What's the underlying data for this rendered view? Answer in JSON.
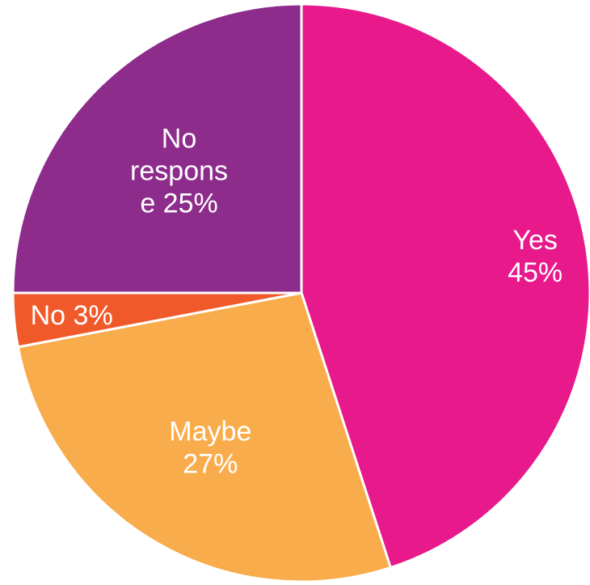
{
  "chart_data": {
    "type": "pie",
    "title": "",
    "start": "top, clockwise",
    "slices": [
      {
        "label": "Yes 45%",
        "lines": [
          "Yes",
          "45%"
        ],
        "category": "Yes",
        "value": 45,
        "color": "#E8198B"
      },
      {
        "label": "Maybe 27%",
        "lines": [
          "Maybe",
          "27%"
        ],
        "category": "Maybe",
        "value": 27,
        "color": "#F9AC4C"
      },
      {
        "label": "No 3%",
        "lines": [
          "No 3%"
        ],
        "category": "No",
        "value": 3,
        "color": "#F05A2B"
      },
      {
        "label": "No response 25%",
        "lines": [
          "No",
          "respons",
          "e 25%"
        ],
        "category": "No response",
        "value": 25,
        "color": "#8E2C8C"
      }
    ]
  }
}
